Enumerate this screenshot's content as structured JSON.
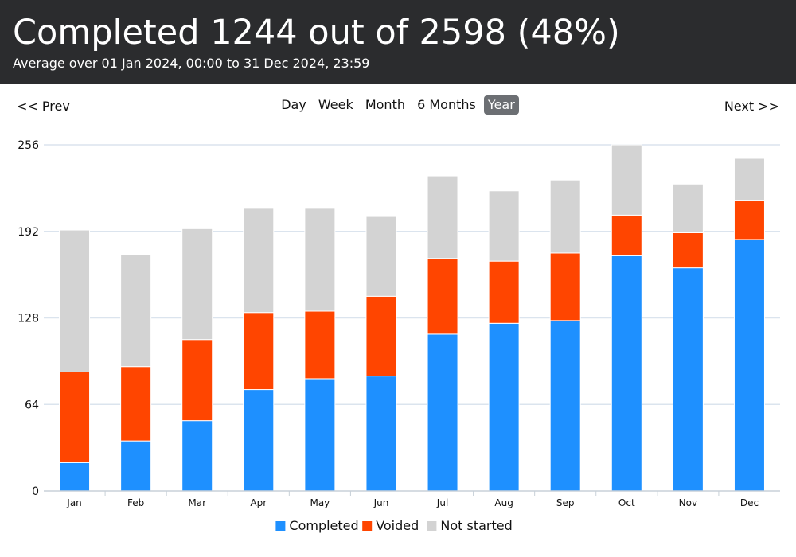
{
  "header": {
    "title": "Completed 1244 out of 2598 (48%)",
    "subtitle": "Average over 01 Jan 2024, 00:00 to 31 Dec 2024, 23:59"
  },
  "nav": {
    "prev_label": "<< Prev",
    "next_label": "Next >>",
    "periods": [
      "Day",
      "Week",
      "Month",
      "6 Months",
      "Year"
    ],
    "active_period": "Year"
  },
  "colors": {
    "completed": "#1e90ff",
    "voided": "#ff4500",
    "not_started": "#d3d3d3",
    "grid": "#dbe4ee"
  },
  "chart_data": {
    "type": "bar",
    "stacked": true,
    "categories": [
      "Jan",
      "Feb",
      "Mar",
      "Apr",
      "May",
      "Jun",
      "Jul",
      "Aug",
      "Sep",
      "Oct",
      "Nov",
      "Dec"
    ],
    "series": [
      {
        "name": "Completed",
        "values": [
          21,
          37,
          52,
          75,
          83,
          85,
          116,
          124,
          126,
          174,
          165,
          186
        ]
      },
      {
        "name": "Voided",
        "values": [
          67,
          55,
          60,
          57,
          50,
          59,
          56,
          46,
          50,
          30,
          26,
          29
        ]
      },
      {
        "name": "Not started",
        "values": [
          105,
          83,
          82,
          77,
          76,
          59,
          61,
          52,
          54,
          52,
          36,
          31
        ]
      }
    ],
    "yticks": [
      0,
      64,
      128,
      192,
      256
    ],
    "ylim": [
      0,
      256
    ],
    "grid": true,
    "legend_position": "bottom"
  }
}
